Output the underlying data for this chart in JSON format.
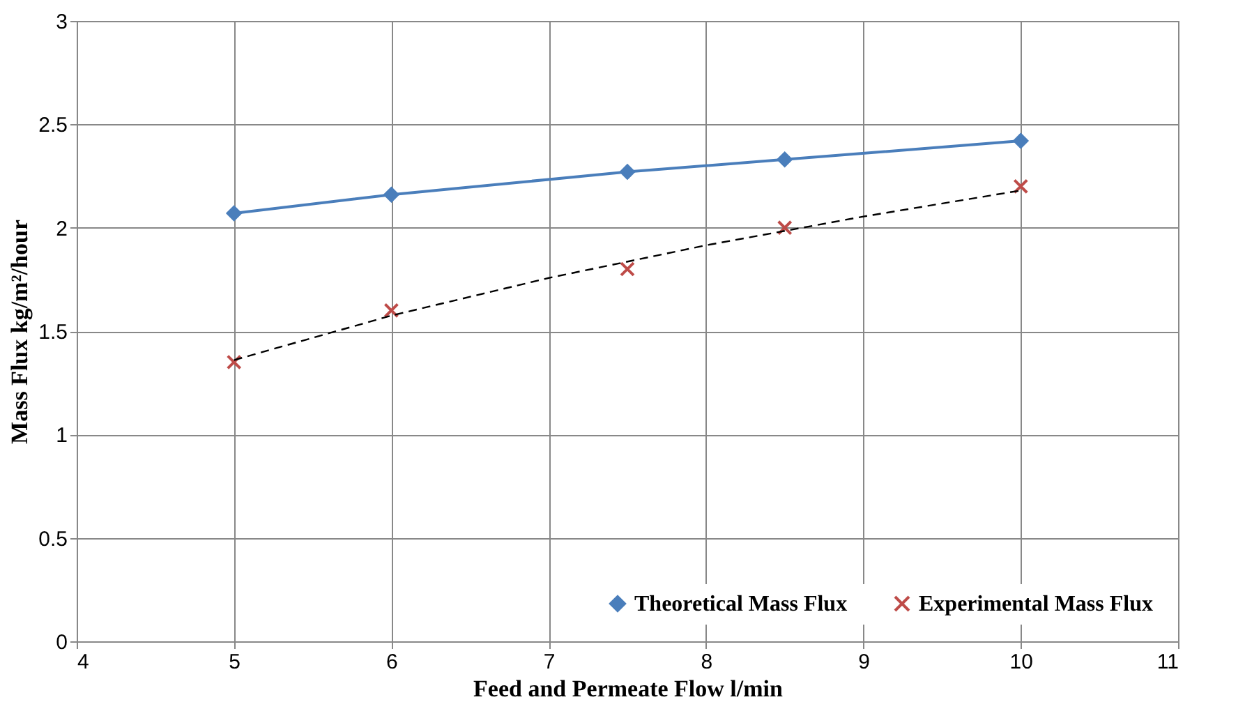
{
  "chart_data": {
    "type": "line",
    "xlabel": "Feed and Permeate Flow l/min",
    "ylabel": "Mass Flux kg/m²/hour",
    "xlim": [
      4,
      11
    ],
    "xticks": [
      4,
      5,
      6,
      7,
      8,
      9,
      10,
      11
    ],
    "ylim": [
      0,
      3
    ],
    "yticks": [
      0,
      0.5,
      1,
      1.5,
      2,
      2.5,
      3
    ],
    "grid": true,
    "legend": "bottom right",
    "series": [
      {
        "name": "Theoretical Mass Flux",
        "type": "line",
        "marker": "diamond",
        "color": "#4a7ebb",
        "x": [
          5,
          6,
          7.5,
          8.5,
          10
        ],
        "values": [
          2.07,
          2.16,
          2.27,
          2.33,
          2.42
        ]
      },
      {
        "name": "Experimental Mass Flux",
        "type": "scatter",
        "marker": "cross",
        "color": "#be4b48",
        "x": [
          5,
          6,
          7.5,
          8.5,
          10
        ],
        "values": [
          1.35,
          1.6,
          1.8,
          2.0,
          2.2
        ]
      },
      {
        "type": "line",
        "line_style": "dashed",
        "marker": "none",
        "color": "#000000",
        "x": [
          5,
          6,
          7,
          8,
          9,
          10
        ],
        "values": [
          1.36,
          1.575,
          1.757,
          1.915,
          2.054,
          2.18
        ]
      }
    ]
  }
}
